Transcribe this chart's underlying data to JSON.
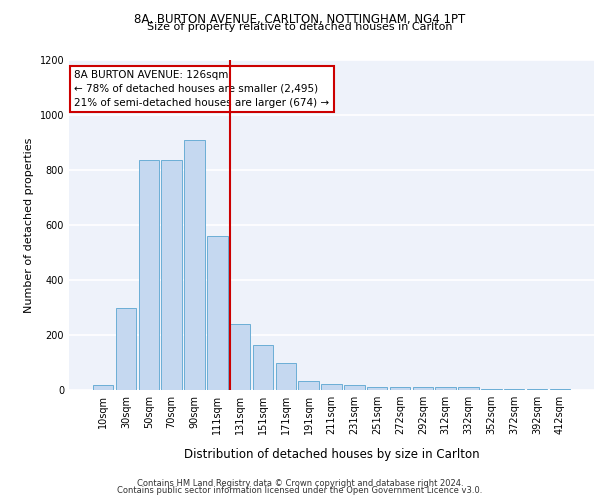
{
  "title_line1": "8A, BURTON AVENUE, CARLTON, NOTTINGHAM, NG4 1PT",
  "title_line2": "Size of property relative to detached houses in Carlton",
  "xlabel": "Distribution of detached houses by size in Carlton",
  "ylabel": "Number of detached properties",
  "footer_line1": "Contains HM Land Registry data © Crown copyright and database right 2024.",
  "footer_line2": "Contains public sector information licensed under the Open Government Licence v3.0.",
  "annotation_line1": "8A BURTON AVENUE: 126sqm",
  "annotation_line2": "← 78% of detached houses are smaller (2,495)",
  "annotation_line3": "21% of semi-detached houses are larger (674) →",
  "bar_categories": [
    "10sqm",
    "30sqm",
    "50sqm",
    "70sqm",
    "90sqm",
    "111sqm",
    "131sqm",
    "151sqm",
    "171sqm",
    "191sqm",
    "211sqm",
    "231sqm",
    "251sqm",
    "272sqm",
    "292sqm",
    "312sqm",
    "332sqm",
    "352sqm",
    "372sqm",
    "392sqm",
    "412sqm"
  ],
  "bar_values": [
    20,
    300,
    835,
    835,
    910,
    560,
    240,
    165,
    100,
    33,
    22,
    20,
    10,
    10,
    10,
    10,
    10,
    5,
    5,
    5,
    5
  ],
  "bar_color": "#c5d8f0",
  "bar_edgecolor": "#6baed6",
  "vline_index": 6,
  "vline_color": "#cc0000",
  "ylim": [
    0,
    1200
  ],
  "yticks": [
    0,
    200,
    400,
    600,
    800,
    1000,
    1200
  ],
  "background_color": "#eef2fa",
  "grid_color": "#ffffff",
  "annotation_box_color": "#ffffff",
  "annotation_box_edge": "#cc0000",
  "fig_width": 6.0,
  "fig_height": 5.0,
  "title1_fontsize": 8.5,
  "title2_fontsize": 8.0,
  "ylabel_fontsize": 8.0,
  "xlabel_fontsize": 8.5,
  "tick_fontsize": 7.0,
  "footer_fontsize": 6.0,
  "annot_fontsize": 7.5
}
